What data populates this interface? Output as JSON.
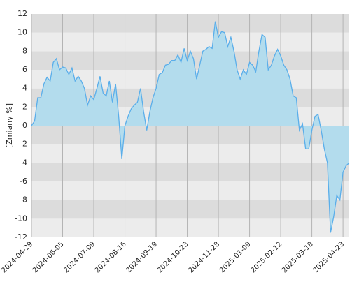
{
  "chart_data": {
    "type": "area",
    "y_label": "[Zmiany %]",
    "categories": [
      "2024-04-29",
      null,
      null,
      null,
      null,
      null,
      null,
      null,
      null,
      null,
      "2024-06-05",
      null,
      null,
      null,
      null,
      null,
      null,
      null,
      null,
      null,
      "2024-07-09",
      null,
      null,
      null,
      null,
      null,
      null,
      null,
      null,
      null,
      "2024-08-16",
      null,
      null,
      null,
      null,
      null,
      null,
      null,
      null,
      null,
      "2024-09-19",
      null,
      null,
      null,
      null,
      null,
      null,
      null,
      null,
      null,
      "2024-10-23",
      null,
      null,
      null,
      null,
      null,
      null,
      null,
      null,
      null,
      "2024-11-28",
      null,
      null,
      null,
      null,
      null,
      null,
      null,
      null,
      null,
      "2025-01-09",
      null,
      null,
      null,
      null,
      null,
      null,
      null,
      null,
      null,
      "2025-02-12",
      null,
      null,
      null,
      null,
      null,
      null,
      null,
      null,
      null,
      "2025-03-18",
      null,
      null,
      null,
      null,
      null,
      null,
      null,
      null,
      null,
      "2025-04-23",
      null,
      null
    ],
    "values": [
      0,
      0.5,
      3,
      3,
      4.5,
      5.2,
      4.8,
      6.8,
      7.2,
      6,
      6.3,
      6.2,
      5.5,
      6.2,
      4.8,
      5.3,
      4.8,
      4,
      2.2,
      3.2,
      2.8,
      4,
      5.3,
      3.5,
      3.2,
      4.8,
      2.5,
      4.5,
      1,
      -3.6,
      0,
      1,
      1.8,
      2.2,
      2.5,
      4,
      1.5,
      -0.5,
      1.5,
      3,
      4,
      5.5,
      5.7,
      6.5,
      6.6,
      7,
      7,
      7.6,
      6.8,
      8.3,
      7,
      8,
      7.2,
      5,
      6.5,
      8,
      8.2,
      8.5,
      8.3,
      11.2,
      9.5,
      10.1,
      10,
      8.5,
      9.5,
      8,
      6,
      5,
      6,
      5.5,
      6.8,
      6.5,
      5.8,
      8,
      9.8,
      9.5,
      6,
      6.5,
      7.5,
      8.2,
      7.5,
      6.5,
      6,
      5,
      3.2,
      3,
      -0.5,
      0.2,
      -2.5,
      -2.5,
      -0.5,
      1,
      1.2,
      -0.5,
      -2.5,
      -4,
      -11.5,
      -9.8,
      -7.5,
      -8,
      -5,
      -4.3,
      -4
    ],
    "color": "#5aaeea",
    "fill_color": "#b3dced",
    "band_colors": [
      "#dcdcdc",
      "#ececec"
    ],
    "ylim": [
      -12,
      12
    ],
    "yticks": [
      -12,
      -10,
      -8,
      -6,
      -4,
      -2,
      0,
      2,
      4,
      6,
      8,
      10,
      12
    ],
    "grid": true
  }
}
